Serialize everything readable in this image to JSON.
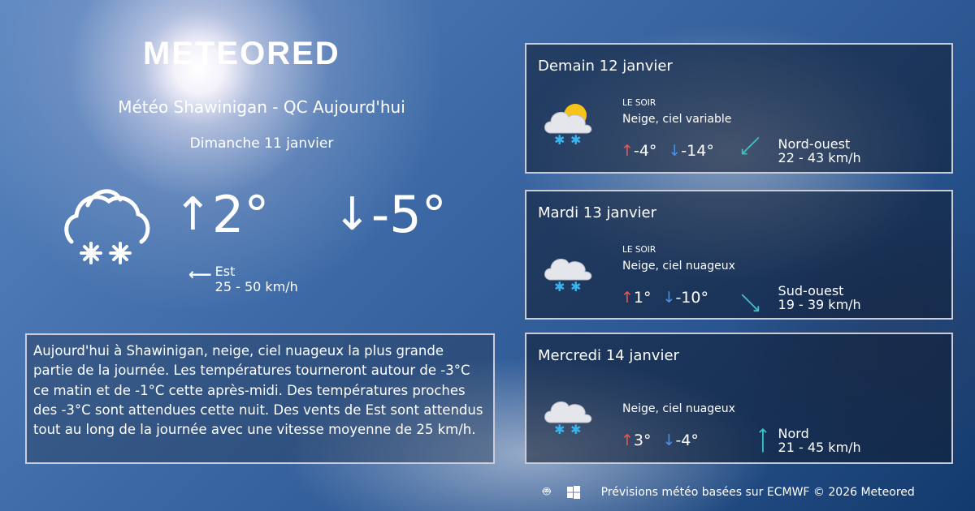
{
  "brand": "METEORED",
  "title": "Météo Shawinigan - QC Aujourd'hui",
  "date": "Dimanche 11 janvier",
  "today": {
    "icon": "snow-cloud-icon",
    "max": "2°",
    "min": "-5°",
    "wind_dir": "Est",
    "wind_speed": "25 - 50 km/h"
  },
  "description": "Aujourd'hui à Shawinigan, neige, ciel nuageux la plus grande partie de la journée. Les températures tourneront autour de -3°C ce matin et de -1°C cette après-midi. Des températures proches des -3°C sont attendues cette nuit. Des vents de Est sont attendus tout au long de la journée avec une vitesse moyenne de 25 km/h.",
  "forecast": [
    {
      "day": "Demain 12 janvier",
      "period": "LE SOIR",
      "condition": "Neige, ciel variable",
      "max": "-4°",
      "min": "-14°",
      "wind_dir": "Nord-ouest",
      "wind_speed": "22 - 43 km/h",
      "icon": "snow-sun-cloud-icon"
    },
    {
      "day": "Mardi 13 janvier",
      "period": "LE SOIR",
      "condition": "Neige, ciel nuageux",
      "max": "1°",
      "min": "-10°",
      "wind_dir": "Sud-ouest",
      "wind_speed": "19 - 39 km/h",
      "icon": "snow-cloud-icon"
    },
    {
      "day": "Mercredi 14 janvier",
      "period": "",
      "condition": "Neige, ciel nuageux",
      "max": "3°",
      "min": "-4°",
      "wind_dir": "Nord",
      "wind_speed": "21 - 45 km/h",
      "icon": "snow-cloud-icon"
    }
  ],
  "footer": {
    "text": "Prévisions météo basées sur ECMWF © 2026 Meteored",
    "apps": [
      "android-icon",
      "apple-icon",
      "windows-icon"
    ]
  },
  "colors": {
    "up": "#e55555",
    "down": "#4a8fe0",
    "wind": "#3cc0c8"
  }
}
